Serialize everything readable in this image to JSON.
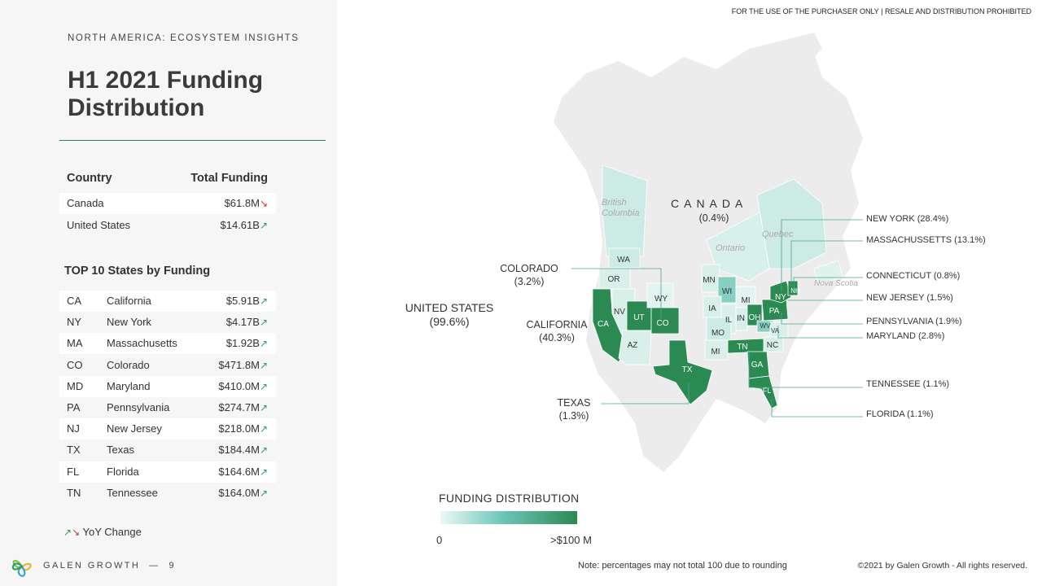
{
  "header": {
    "eyebrow": "NORTH AMERICA: ECOSYSTEM INSIGHTS",
    "title": "H1 2021 Funding Distribution",
    "disclaimer": "FOR THE USE OF THE PURCHASER ONLY | RESALE AND DISTRIBUTION PROHIBITED"
  },
  "country_table": {
    "col_country": "Country",
    "col_funding": "Total Funding",
    "rows": [
      {
        "country": "Canada",
        "funding": "$61.8M",
        "trend": "↘",
        "trend_dir": "down"
      },
      {
        "country": "United States",
        "funding": "$14.61B",
        "trend": "↗",
        "trend_dir": "up"
      }
    ]
  },
  "top10": {
    "heading": "TOP 10 States by Funding",
    "rows": [
      {
        "code": "CA",
        "name": "California",
        "funding": "$5.91B",
        "trend": "↗"
      },
      {
        "code": "NY",
        "name": "New York",
        "funding": "$4.17B",
        "trend": "↗"
      },
      {
        "code": "MA",
        "name": "Massachusetts",
        "funding": "$1.92B",
        "trend": "↗"
      },
      {
        "code": "CO",
        "name": "Colorado",
        "funding": "$471.8M",
        "trend": "↗"
      },
      {
        "code": "MD",
        "name": "Maryland",
        "funding": "$410.0M",
        "trend": "↗"
      },
      {
        "code": "PA",
        "name": "Pennsylvania",
        "funding": "$274.7M",
        "trend": "↗"
      },
      {
        "code": "NJ",
        "name": "New Jersey",
        "funding": "$218.0M",
        "trend": "↗"
      },
      {
        "code": "TX",
        "name": "Texas",
        "funding": "$184.4M",
        "trend": "↗"
      },
      {
        "code": "FL",
        "name": "Florida",
        "funding": "$164.6M",
        "trend": "↗"
      },
      {
        "code": "TN",
        "name": "Tennessee",
        "funding": "$164.0M",
        "trend": "↗"
      }
    ]
  },
  "yoy_legend": {
    "up": "↗",
    "down": "↘",
    "label": "YoY Change"
  },
  "brand": {
    "name": "GALEN GROWTH",
    "separator": "—",
    "page": "9"
  },
  "map": {
    "canada": {
      "name": "CANADA",
      "pct": "(0.4%)"
    },
    "united_states": {
      "name": "UNITED STATES",
      "pct": "(99.6%)"
    },
    "regions": {
      "british_columbia": "British Columbia",
      "ontario": "Ontario",
      "quebec": "Quebec",
      "nova_scotia": "Nova Scotia"
    },
    "callouts": {
      "colorado": {
        "name": "COLORADO",
        "pct": "(3.2%)"
      },
      "california": {
        "name": "CALIFORNIA",
        "pct": "(40.3%)"
      },
      "texas": {
        "name": "TEXAS",
        "pct": "(1.3%)"
      }
    },
    "right_callouts": [
      "NEW YORK (28.4%)",
      "MASSACHUSSETTS (13.1%)",
      "CONNECTICUT (0.8%)",
      "NEW JERSEY (1.5%)",
      "PENNSYLVANIA (1.9%)",
      "MARYLAND (2.8%)",
      "TENNESSEE (1.1%)",
      "FLORIDA (1.1%)"
    ],
    "state_codes": [
      "WA",
      "OR",
      "CA",
      "NV",
      "UT",
      "AZ",
      "WY",
      "CO",
      "TX",
      "MN",
      "WI",
      "MI",
      "IA",
      "IL",
      "IN",
      "OH",
      "PA",
      "NY",
      "NH",
      "MO",
      "MI",
      "TN",
      "NC",
      "VA",
      "WV",
      "GA",
      "FL"
    ],
    "colors": {
      "high": "#2a8a52",
      "mid": "#86cfc3",
      "low": "#cfece6",
      "land": "#ececec"
    }
  },
  "legend": {
    "title": "FUNDING DISTRIBUTION",
    "min": "0",
    "max": ">$100 M"
  },
  "footer": {
    "note": "Note: percentages may not total 100 due to rounding",
    "copyright": "©2021 by Galen Growth - All rights reserved."
  }
}
